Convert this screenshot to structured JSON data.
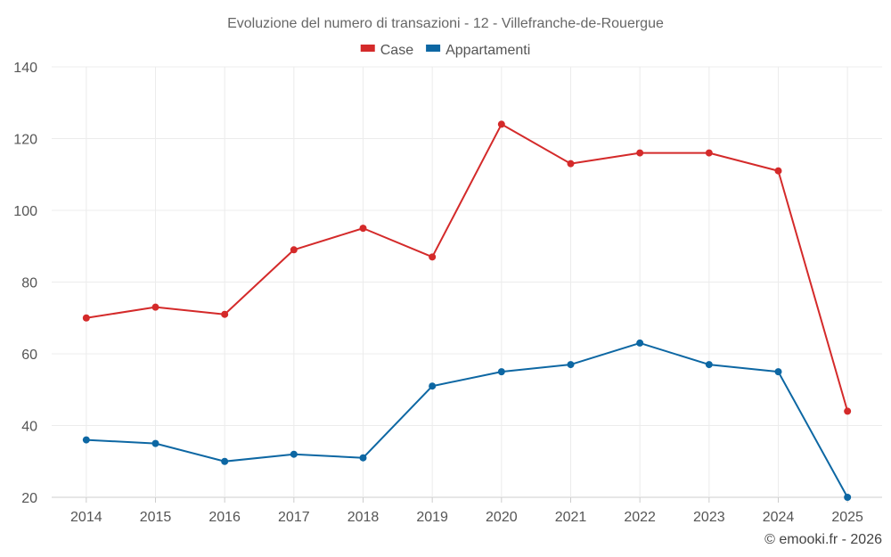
{
  "chart_data": {
    "type": "line",
    "title": "Evoluzione del numero di transazioni - 12 - Villefranche-de-Rouergue",
    "categories": [
      "2014",
      "2015",
      "2016",
      "2017",
      "2018",
      "2019",
      "2020",
      "2021",
      "2022",
      "2023",
      "2024",
      "2025"
    ],
    "series": [
      {
        "name": "Case",
        "color": "#d42a2a",
        "values": [
          70,
          73,
          71,
          89,
          95,
          87,
          124,
          113,
          116,
          116,
          111,
          44
        ]
      },
      {
        "name": "Appartamenti",
        "color": "#0d67a3",
        "values": [
          36,
          35,
          30,
          32,
          31,
          51,
          55,
          57,
          63,
          57,
          55,
          20
        ]
      }
    ],
    "ylim": [
      20,
      140
    ],
    "yticks": [
      20,
      40,
      60,
      80,
      100,
      120,
      140
    ],
    "xlabel": "",
    "ylabel": "",
    "grid": true,
    "legend": "top-center"
  },
  "credit": "© emooki.fr - 2026"
}
